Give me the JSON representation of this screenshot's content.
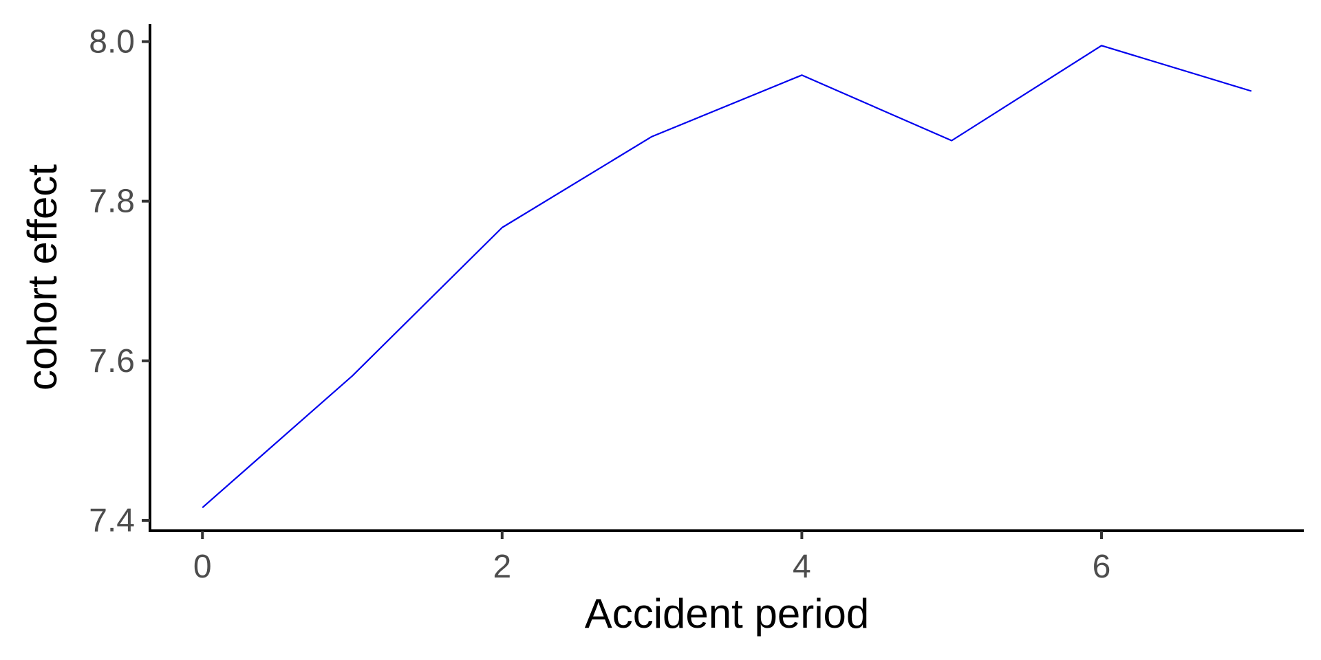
{
  "chart_data": {
    "type": "line",
    "title": "",
    "xlabel": "Accident period",
    "ylabel": "cohort effect",
    "x": [
      0,
      1,
      2,
      3,
      4,
      5,
      6,
      7
    ],
    "series": [
      {
        "values": [
          7.416,
          7.581,
          7.767,
          7.881,
          7.958,
          7.876,
          7.995,
          7.938
        ],
        "color": "#0000ee"
      }
    ],
    "xlim": [
      -0.35,
      7.35
    ],
    "ylim": [
      7.387,
      8.022
    ],
    "xticks": [
      0,
      2,
      4,
      6
    ],
    "yticks": [
      7.4,
      7.6,
      7.8,
      8.0
    ],
    "xtick_labels": [
      "0",
      "2",
      "4",
      "6"
    ],
    "ytick_labels": [
      "7.4",
      "7.6",
      "7.8",
      "8.0"
    ],
    "grid": false,
    "legend": "none"
  }
}
